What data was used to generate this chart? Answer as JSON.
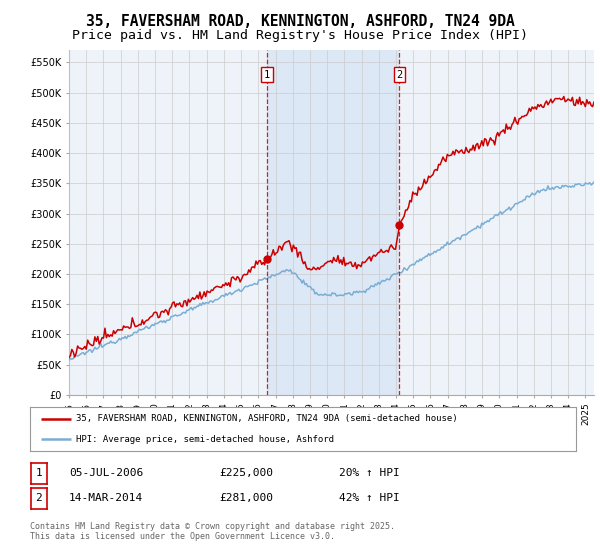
{
  "title_line1": "35, FAVERSHAM ROAD, KENNINGTON, ASHFORD, TN24 9DA",
  "title_line2": "Price paid vs. HM Land Registry's House Price Index (HPI)",
  "ylim": [
    0,
    570000
  ],
  "yticks": [
    0,
    50000,
    100000,
    150000,
    200000,
    250000,
    300000,
    350000,
    400000,
    450000,
    500000,
    550000
  ],
  "ytick_labels": [
    "£0",
    "£50K",
    "£100K",
    "£150K",
    "£200K",
    "£250K",
    "£300K",
    "£350K",
    "£400K",
    "£450K",
    "£500K",
    "£550K"
  ],
  "xlim_start": 1995.0,
  "xlim_end": 2025.5,
  "xtick_years": [
    1995,
    1996,
    1997,
    1998,
    1999,
    2000,
    2001,
    2002,
    2003,
    2004,
    2005,
    2006,
    2007,
    2008,
    2009,
    2010,
    2011,
    2012,
    2013,
    2014,
    2015,
    2016,
    2017,
    2018,
    2019,
    2020,
    2021,
    2022,
    2023,
    2024,
    2025
  ],
  "sale1_x": 2006.51,
  "sale1_y": 225000,
  "sale1_label": "1",
  "sale2_x": 2014.2,
  "sale2_y": 281000,
  "sale2_label": "2",
  "red_color": "#cc0000",
  "blue_color": "#7aadd4",
  "shade_color": "#dce8f5",
  "dashed_color": "#cc0000",
  "background_color": "#ffffff",
  "plot_bg_color": "#eef3fa",
  "grid_color": "#cccccc",
  "legend_label_red": "35, FAVERSHAM ROAD, KENNINGTON, ASHFORD, TN24 9DA (semi-detached house)",
  "legend_label_blue": "HPI: Average price, semi-detached house, Ashford",
  "table_row1": [
    "1",
    "05-JUL-2006",
    "£225,000",
    "20% ↑ HPI"
  ],
  "table_row2": [
    "2",
    "14-MAR-2014",
    "£281,000",
    "42% ↑ HPI"
  ],
  "footer": "Contains HM Land Registry data © Crown copyright and database right 2025.\nThis data is licensed under the Open Government Licence v3.0.",
  "title_fontsize": 10.5,
  "subtitle_fontsize": 9.5
}
